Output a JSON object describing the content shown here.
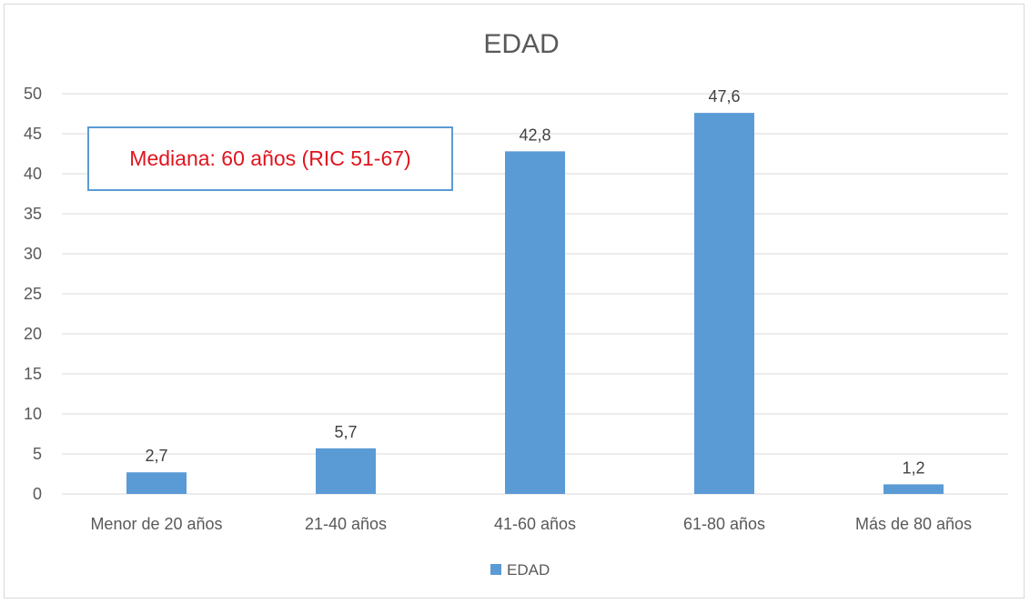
{
  "chart_data": {
    "type": "bar",
    "title": "EDAD",
    "categories": [
      "Menor de 20 años",
      "21-40 años",
      "41-60 años",
      "61-80 años",
      "Más de 80 años"
    ],
    "series": [
      {
        "name": "EDAD",
        "values": [
          2.7,
          5.7,
          42.8,
          47.6,
          1.2
        ],
        "labels": [
          "2,7",
          "5,7",
          "42,8",
          "47,6",
          "1,2"
        ],
        "color": "#5b9bd5"
      }
    ],
    "yticks": [
      "0",
      "5",
      "10",
      "15",
      "20",
      "25",
      "30",
      "35",
      "40",
      "45",
      "50"
    ],
    "ylim": [
      0,
      50
    ],
    "grid": true,
    "legend_position": "bottom",
    "annotation": {
      "text": "Mediana: 60 años (RIC 51-67)",
      "text_color": "#e0141e",
      "border_color": "#5b9bd5"
    },
    "colors": {
      "gridline": "#d9d9d9",
      "axis_text": "#595959"
    }
  }
}
